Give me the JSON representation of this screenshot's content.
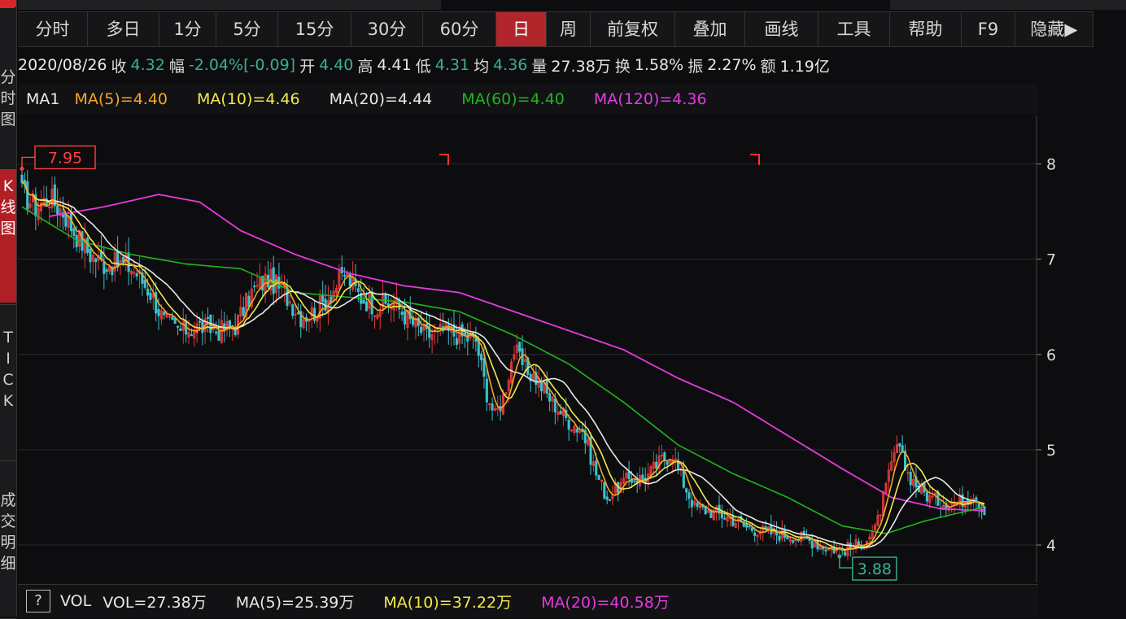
{
  "sidebar": {
    "items": [
      {
        "label": "分时图",
        "active": false
      },
      {
        "label": "K线图",
        "active": true
      },
      {
        "label": "TICK",
        "active": false
      },
      {
        "label": "成交明细",
        "active": false
      }
    ]
  },
  "toolbar": {
    "items": [
      {
        "label": "分时",
        "active": false
      },
      {
        "label": "多日",
        "active": false
      },
      {
        "label": "1分",
        "active": false
      },
      {
        "label": "5分",
        "active": false
      },
      {
        "label": "15分",
        "active": false
      },
      {
        "label": "30分",
        "active": false
      },
      {
        "label": "60分",
        "active": false
      },
      {
        "label": "日",
        "active": true
      },
      {
        "label": "周",
        "active": false
      },
      {
        "label": "前复权",
        "active": false
      },
      {
        "label": "叠加",
        "active": false
      },
      {
        "label": "画线",
        "active": false
      },
      {
        "label": "工具",
        "active": false
      },
      {
        "label": "帮助",
        "active": false
      },
      {
        "label": "F9",
        "active": false
      },
      {
        "label": "隐藏▶",
        "active": false
      }
    ]
  },
  "quote": {
    "date": "2020/08/26",
    "close_label": "收",
    "close": "4.32",
    "change_label": "幅",
    "change_pct": "-2.04%",
    "change_abs": "[-0.09]",
    "open_label": "开",
    "open": "4.40",
    "high_label": "高",
    "high": "4.41",
    "low_label": "低",
    "low": "4.31",
    "avg_label": "均",
    "avg": "4.36",
    "volume_label": "量",
    "volume": "27.38万",
    "turnover_label": "换",
    "turnover": "1.58%",
    "amplitude_label": "振",
    "amplitude": "2.27%",
    "amount_label": "额",
    "amount": "1.19亿"
  },
  "ma_legend": {
    "name": "MA1",
    "items": [
      {
        "text": "MA(5)=4.40",
        "color": "#f5a623"
      },
      {
        "text": "MA(10)=4.46",
        "color": "#f2e84c"
      },
      {
        "text": "MA(20)=4.44",
        "color": "#e8e8e8"
      },
      {
        "text": "MA(60)=4.40",
        "color": "#1fb51f"
      },
      {
        "text": "MA(120)=4.36",
        "color": "#e43be0"
      }
    ]
  },
  "vol_legend": {
    "help": "?",
    "name": "VOL",
    "items": [
      {
        "text": "VOL=27.38万",
        "color": "#e8e8e8"
      },
      {
        "text": "MA(5)=25.39万",
        "color": "#e8e8e8"
      },
      {
        "text": "MA(10)=37.22万",
        "color": "#f2e84c"
      },
      {
        "text": "MA(20)=40.58万",
        "color": "#e43be0"
      }
    ]
  },
  "chart_data": {
    "type": "candlestick",
    "ylim": [
      3.75,
      8.5
    ],
    "y_ticks": [
      8,
      7,
      6,
      5,
      4
    ],
    "grid": true,
    "colors": {
      "up": "#e03a3a",
      "down": "#39c2cf",
      "ma5": "#f5a623",
      "ma10": "#f2e84c",
      "ma20": "#e8e8e8",
      "ma60": "#1fb51f",
      "ma120": "#e43be0",
      "grid": "#2b2b2e"
    },
    "max_label": "7.95",
    "min_label": "3.88",
    "x_count": 285,
    "price_anchors": [
      [
        0,
        7.7
      ],
      [
        5,
        7.55
      ],
      [
        10,
        7.65
      ],
      [
        15,
        7.5
      ],
      [
        20,
        7.25
      ],
      [
        25,
        7.05
      ],
      [
        30,
        6.95
      ],
      [
        38,
        6.95
      ],
      [
        42,
        6.85
      ],
      [
        47,
        6.65
      ],
      [
        52,
        6.35
      ],
      [
        58,
        6.25
      ],
      [
        65,
        6.3
      ],
      [
        72,
        6.25
      ],
      [
        78,
        6.3
      ],
      [
        84,
        6.65
      ],
      [
        90,
        6.8
      ],
      [
        96,
        6.65
      ],
      [
        102,
        6.4
      ],
      [
        107,
        6.45
      ],
      [
        112,
        6.6
      ],
      [
        118,
        6.85
      ],
      [
        124,
        6.6
      ],
      [
        130,
        6.5
      ],
      [
        136,
        6.55
      ],
      [
        142,
        6.35
      ],
      [
        148,
        6.2
      ],
      [
        154,
        6.25
      ],
      [
        160,
        6.2
      ],
      [
        166,
        6.15
      ],
      [
        170,
        5.6
      ],
      [
        173,
        5.35
      ],
      [
        176,
        5.55
      ],
      [
        180,
        6.05
      ],
      [
        184,
        5.85
      ],
      [
        188,
        5.75
      ],
      [
        194,
        5.5
      ],
      [
        200,
        5.3
      ],
      [
        205,
        5.2
      ],
      [
        210,
        4.75
      ],
      [
        214,
        4.5
      ],
      [
        218,
        4.6
      ],
      [
        222,
        4.7
      ],
      [
        228,
        4.7
      ],
      [
        234,
        4.9
      ],
      [
        238,
        4.95
      ],
      [
        242,
        4.65
      ],
      [
        246,
        4.4
      ],
      [
        252,
        4.35
      ],
      [
        258,
        4.3
      ],
      [
        264,
        4.2
      ],
      [
        270,
        4.15
      ],
      [
        276,
        4.12
      ],
      [
        282,
        4.1
      ],
      [
        288,
        4.05
      ],
      [
        294,
        3.98
      ],
      [
        300,
        3.95
      ],
      [
        306,
        4.0
      ],
      [
        312,
        4.15
      ],
      [
        316,
        4.6
      ],
      [
        320,
        5.05
      ],
      [
        324,
        4.75
      ],
      [
        328,
        4.6
      ],
      [
        332,
        4.5
      ],
      [
        336,
        4.45
      ],
      [
        342,
        4.45
      ],
      [
        346,
        4.5
      ],
      [
        348,
        4.55
      ],
      [
        350,
        4.45
      ],
      [
        352,
        4.32
      ]
    ],
    "ma60_anchors": [
      [
        0,
        7.55
      ],
      [
        20,
        7.2
      ],
      [
        40,
        7.05
      ],
      [
        60,
        6.95
      ],
      [
        80,
        6.9
      ],
      [
        100,
        6.65
      ],
      [
        120,
        6.6
      ],
      [
        140,
        6.55
      ],
      [
        160,
        6.45
      ],
      [
        180,
        6.2
      ],
      [
        200,
        5.9
      ],
      [
        220,
        5.5
      ],
      [
        240,
        5.05
      ],
      [
        260,
        4.75
      ],
      [
        280,
        4.5
      ],
      [
        300,
        4.2
      ],
      [
        316,
        4.12
      ],
      [
        330,
        4.25
      ],
      [
        352,
        4.4
      ]
    ],
    "ma120_anchors": [
      [
        10,
        7.45
      ],
      [
        30,
        7.55
      ],
      [
        50,
        7.68
      ],
      [
        65,
        7.6
      ],
      [
        80,
        7.3
      ],
      [
        100,
        7.05
      ],
      [
        120,
        6.85
      ],
      [
        140,
        6.72
      ],
      [
        160,
        6.65
      ],
      [
        180,
        6.45
      ],
      [
        200,
        6.25
      ],
      [
        220,
        6.05
      ],
      [
        240,
        5.75
      ],
      [
        260,
        5.5
      ],
      [
        280,
        5.15
      ],
      [
        300,
        4.8
      ],
      [
        318,
        4.5
      ],
      [
        336,
        4.38
      ],
      [
        352,
        4.36
      ]
    ]
  }
}
